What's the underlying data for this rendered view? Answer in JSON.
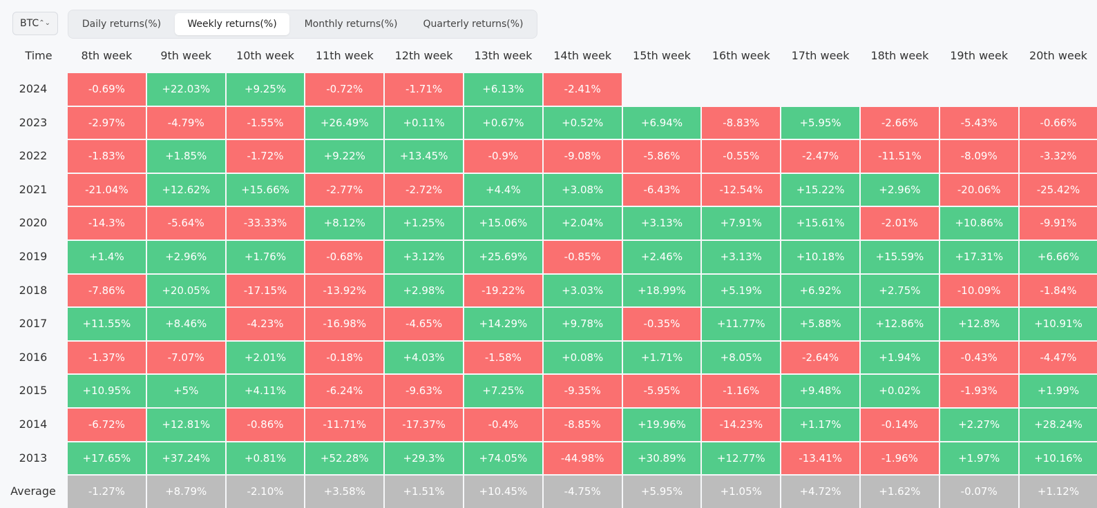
{
  "coin_select": {
    "value": "BTC",
    "chevron": "⌃⌄"
  },
  "tabs": [
    {
      "label": "Daily returns(%)",
      "active": false
    },
    {
      "label": "Weekly returns(%)",
      "active": true
    },
    {
      "label": "Monthly returns(%)",
      "active": false
    },
    {
      "label": "Quarterly returns(%)",
      "active": false
    }
  ],
  "colors": {
    "positive": "#52cc8a",
    "negative": "#fa7070",
    "average": "#bcbcbc"
  },
  "table": {
    "time_header": "Time",
    "columns": [
      "8th week",
      "9th week",
      "10th week",
      "11th week",
      "12th week",
      "13th week",
      "14th week",
      "15th week",
      "16th week",
      "17th week",
      "18th week",
      "19th week",
      "20th week"
    ],
    "rows": [
      {
        "label": "2024",
        "values": [
          "-0.69%",
          "+22.03%",
          "+9.25%",
          "-0.72%",
          "-1.71%",
          "+6.13%",
          "-2.41%",
          "",
          "",
          "",
          "",
          "",
          ""
        ]
      },
      {
        "label": "2023",
        "values": [
          "-2.97%",
          "-4.79%",
          "-1.55%",
          "+26.49%",
          "+0.11%",
          "+0.67%",
          "+0.52%",
          "+6.94%",
          "-8.83%",
          "+5.95%",
          "-2.66%",
          "-5.43%",
          "-0.66%"
        ]
      },
      {
        "label": "2022",
        "values": [
          "-1.83%",
          "+1.85%",
          "-1.72%",
          "+9.22%",
          "+13.45%",
          "-0.9%",
          "-9.08%",
          "-5.86%",
          "-0.55%",
          "-2.47%",
          "-11.51%",
          "-8.09%",
          "-3.32%"
        ]
      },
      {
        "label": "2021",
        "values": [
          "-21.04%",
          "+12.62%",
          "+15.66%",
          "-2.77%",
          "-2.72%",
          "+4.4%",
          "+3.08%",
          "-6.43%",
          "-12.54%",
          "+15.22%",
          "+2.96%",
          "-20.06%",
          "-25.42%"
        ]
      },
      {
        "label": "2020",
        "values": [
          "-14.3%",
          "-5.64%",
          "-33.33%",
          "+8.12%",
          "+1.25%",
          "+15.06%",
          "+2.04%",
          "+3.13%",
          "+7.91%",
          "+15.61%",
          "-2.01%",
          "+10.86%",
          "-9.91%"
        ]
      },
      {
        "label": "2019",
        "values": [
          "+1.4%",
          "+2.96%",
          "+1.76%",
          "-0.68%",
          "+3.12%",
          "+25.69%",
          "-0.85%",
          "+2.46%",
          "+3.13%",
          "+10.18%",
          "+15.59%",
          "+17.31%",
          "+6.66%"
        ]
      },
      {
        "label": "2018",
        "values": [
          "-7.86%",
          "+20.05%",
          "-17.15%",
          "-13.92%",
          "+2.98%",
          "-19.22%",
          "+3.03%",
          "+18.99%",
          "+5.19%",
          "+6.92%",
          "+2.75%",
          "-10.09%",
          "-1.84%"
        ]
      },
      {
        "label": "2017",
        "values": [
          "+11.55%",
          "+8.46%",
          "-4.23%",
          "-16.98%",
          "-4.65%",
          "+14.29%",
          "+9.78%",
          "-0.35%",
          "+11.77%",
          "+5.88%",
          "+12.86%",
          "+12.8%",
          "+10.91%"
        ]
      },
      {
        "label": "2016",
        "values": [
          "-1.37%",
          "-7.07%",
          "+2.01%",
          "-0.18%",
          "+4.03%",
          "-1.58%",
          "+0.08%",
          "+1.71%",
          "+8.05%",
          "-2.64%",
          "+1.94%",
          "-0.43%",
          "-4.47%"
        ]
      },
      {
        "label": "2015",
        "values": [
          "+10.95%",
          "+5%",
          "+4.11%",
          "-6.24%",
          "-9.63%",
          "+7.25%",
          "-9.35%",
          "-5.95%",
          "-1.16%",
          "+9.48%",
          "+0.02%",
          "-1.93%",
          "+1.99%"
        ]
      },
      {
        "label": "2014",
        "values": [
          "-6.72%",
          "+12.81%",
          "-0.86%",
          "-11.71%",
          "-17.37%",
          "-0.4%",
          "-8.85%",
          "+19.96%",
          "-14.23%",
          "+1.17%",
          "-0.14%",
          "+2.27%",
          "+28.24%"
        ]
      },
      {
        "label": "2013",
        "values": [
          "+17.65%",
          "+37.24%",
          "+0.81%",
          "+52.28%",
          "+29.3%",
          "+74.05%",
          "-44.98%",
          "+30.89%",
          "+12.77%",
          "-13.41%",
          "-1.96%",
          "+1.97%",
          "+10.16%"
        ]
      }
    ],
    "average": {
      "label": "Average",
      "values": [
        "-1.27%",
        "+8.79%",
        "-2.10%",
        "+3.58%",
        "+1.51%",
        "+10.45%",
        "-4.75%",
        "+5.95%",
        "+1.05%",
        "+4.72%",
        "+1.62%",
        "-0.07%",
        "+1.12%"
      ]
    }
  }
}
